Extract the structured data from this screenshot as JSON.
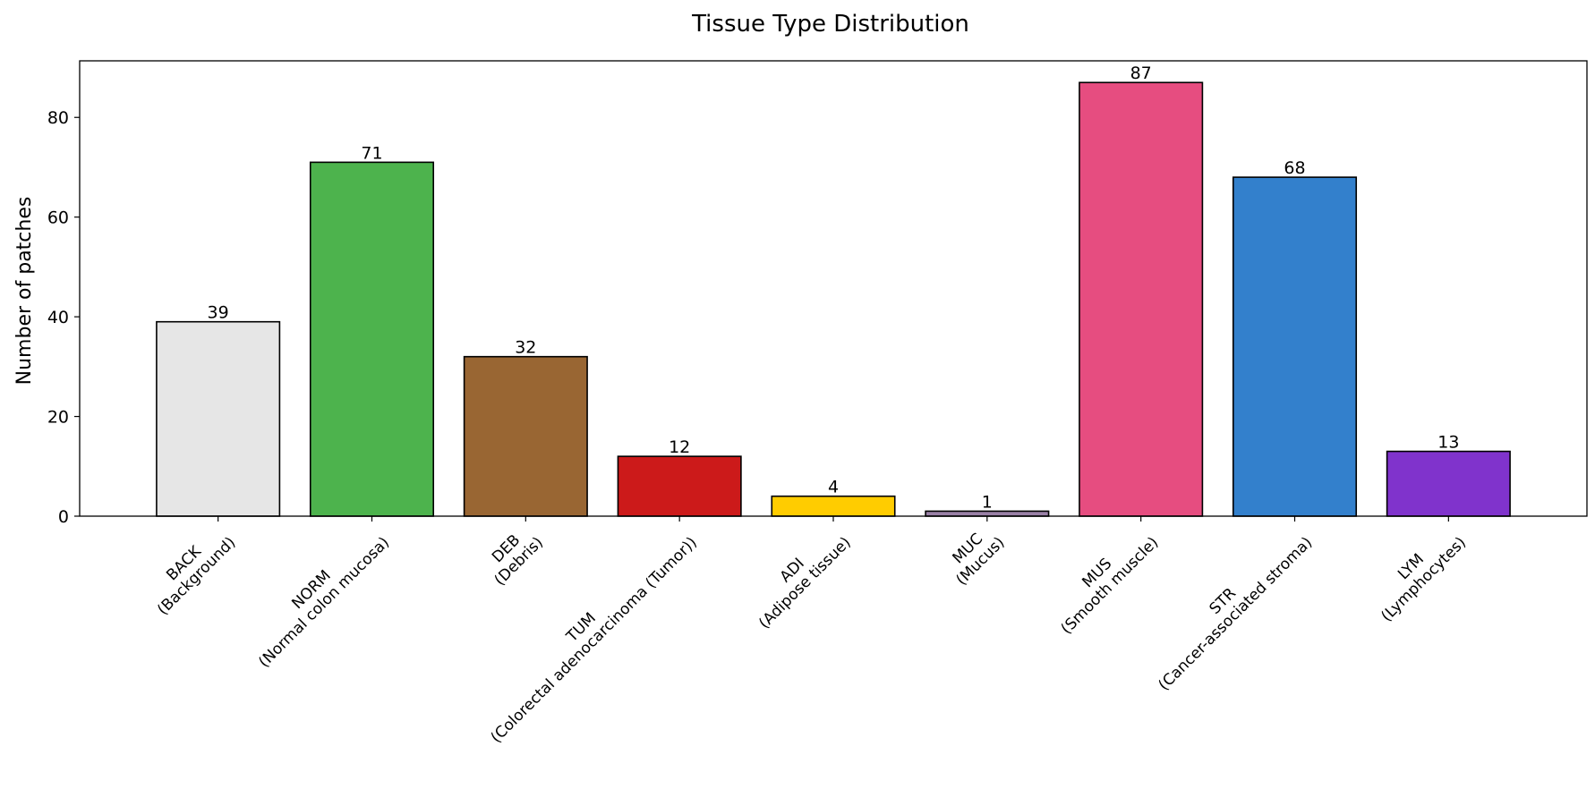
{
  "chart_data": {
    "type": "bar",
    "title": "Tissue Type Distribution",
    "xlabel": "",
    "ylabel": "Number of patches",
    "categories": [
      {
        "code": "BACK",
        "description": "(Background)"
      },
      {
        "code": "NORM",
        "description": "(Normal colon mucosa)"
      },
      {
        "code": "DEB",
        "description": "(Debris)"
      },
      {
        "code": "TUM",
        "description": "(Colorectal adenocarcinoma (Tumor))"
      },
      {
        "code": "ADI",
        "description": "(Adipose tissue)"
      },
      {
        "code": "MUC",
        "description": "(Mucus)"
      },
      {
        "code": "MUS",
        "description": "(Smooth muscle)"
      },
      {
        "code": "STR",
        "description": "(Cancer-associated stroma)"
      },
      {
        "code": "LYM",
        "description": "(Lymphocytes)"
      }
    ],
    "values": [
      39,
      71,
      32,
      12,
      4,
      1,
      87,
      68,
      13
    ],
    "colors": [
      "#e6e6e6",
      "#4db34d",
      "#996633",
      "#cc1a1a",
      "#ffcc00",
      "#9980a6",
      "#e64d80",
      "#3380cc",
      "#8033cc"
    ],
    "yticks": [
      0,
      20,
      40,
      60,
      80
    ],
    "ylim": [
      0,
      91.35
    ],
    "grid": false,
    "legend": "none",
    "bar_edge_color": "#000000"
  }
}
